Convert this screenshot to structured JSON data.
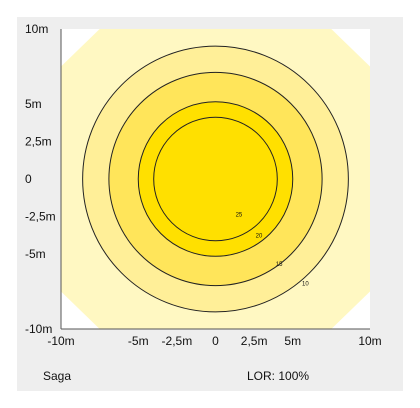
{
  "footer": {
    "product": "Saga",
    "lor": "LOR: 100%"
  },
  "colors": {
    "panel_bg": "#eeeeee",
    "plot_bg": "#ffffff",
    "outer_fill": "#fff8c2",
    "zone_15_fill": "#ffef98",
    "zone_20_fill": "#ffe55a",
    "zone_25_fill": "#ffe000",
    "contour_line": "#222222",
    "axis_line": "#555555"
  },
  "chart_data": {
    "type": "contour",
    "x": {
      "ticks": [
        -10,
        -5,
        -2.5,
        0,
        2.5,
        5,
        10
      ],
      "tick_labels": [
        "-10m",
        "-5m",
        "-2,5m",
        "0",
        "2,5m",
        "5m",
        "10m"
      ],
      "range": [
        -10,
        10
      ]
    },
    "y": {
      "ticks": [
        10,
        5,
        2.5,
        0,
        -2.5,
        -5,
        -10
      ],
      "tick_labels": [
        "10m",
        "5m",
        "2,5m",
        "0",
        "-2,5m",
        "-5m",
        "-10m"
      ],
      "range": [
        -10,
        10
      ]
    },
    "outer_region": {
      "shape": "octagon",
      "half_extent": 10.5,
      "corner_cut": 3.5
    },
    "contours": [
      {
        "label": "10",
        "radius": 8.6,
        "label_at": [
          5.6,
          -7.1
        ]
      },
      {
        "label": "15",
        "radius": 6.9,
        "label_at": [
          3.9,
          -5.8
        ]
      },
      {
        "label": "20",
        "radius": 5.0,
        "label_at": [
          2.6,
          -3.9
        ]
      },
      {
        "label": "25",
        "radius": 4.0,
        "label_at": [
          1.3,
          -2.5
        ]
      }
    ],
    "grid": false,
    "legend": "none"
  }
}
